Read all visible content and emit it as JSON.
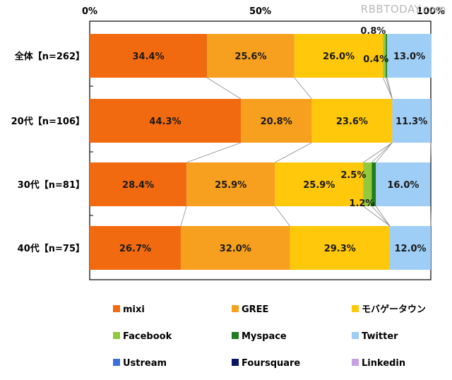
{
  "watermark": "RBBTODAY.com",
  "chart_data": {
    "type": "bar",
    "orientation": "horizontal",
    "stacked": "100%",
    "x_axis_ticks": [
      "0%",
      "50%",
      "100%"
    ],
    "xlim": [
      0,
      100
    ],
    "categories": [
      "全体【n=262】",
      "20代【n=106】",
      "30代【n=81】",
      "40代【n=75】"
    ],
    "series": [
      {
        "name": "mixi",
        "color": "#f26a10",
        "values": [
          34.4,
          44.3,
          28.4,
          26.7
        ],
        "labels": [
          "34.4%",
          "44.3%",
          "28.4%",
          "26.7%"
        ]
      },
      {
        "name": "GREE",
        "color": "#f7a020",
        "values": [
          25.6,
          20.8,
          25.9,
          32.0
        ],
        "labels": [
          "25.6%",
          "20.8%",
          "25.9%",
          "32.0%"
        ]
      },
      {
        "name": "モバゲータウン",
        "color": "#ffc80a",
        "values": [
          26.0,
          23.6,
          25.9,
          29.3
        ],
        "labels": [
          "26.0%",
          "23.6%",
          "25.9%",
          "29.3%"
        ]
      },
      {
        "name": "Facebook",
        "color": "#92c83e",
        "values": [
          0.8,
          0,
          2.5,
          0
        ],
        "labels": [
          "0.8%",
          "",
          "2.5%",
          ""
        ]
      },
      {
        "name": "Myspace",
        "color": "#1f7d1f",
        "values": [
          0.4,
          0,
          1.2,
          0
        ],
        "labels": [
          "0.4%",
          "",
          "1.2%",
          ""
        ]
      },
      {
        "name": "Twitter",
        "color": "#9ecdf5",
        "values": [
          13.0,
          11.3,
          16.0,
          12.0
        ],
        "labels": [
          "13.0%",
          "11.3%",
          "16.0%",
          "12.0%"
        ]
      },
      {
        "name": "Ustream",
        "color": "#3a6fe0",
        "values": [
          0,
          0,
          0,
          0
        ],
        "labels": [
          "",
          "",
          "",
          ""
        ]
      },
      {
        "name": "Foursquare",
        "color": "#0a1464",
        "values": [
          0,
          0,
          0,
          0
        ],
        "labels": [
          "",
          "",
          "",
          ""
        ]
      },
      {
        "name": "Linkedin",
        "color": "#c7a1e6",
        "values": [
          0,
          0,
          0,
          0
        ],
        "labels": [
          "",
          "",
          "",
          ""
        ]
      }
    ],
    "series_connectors": true,
    "legend_position": "bottom"
  }
}
